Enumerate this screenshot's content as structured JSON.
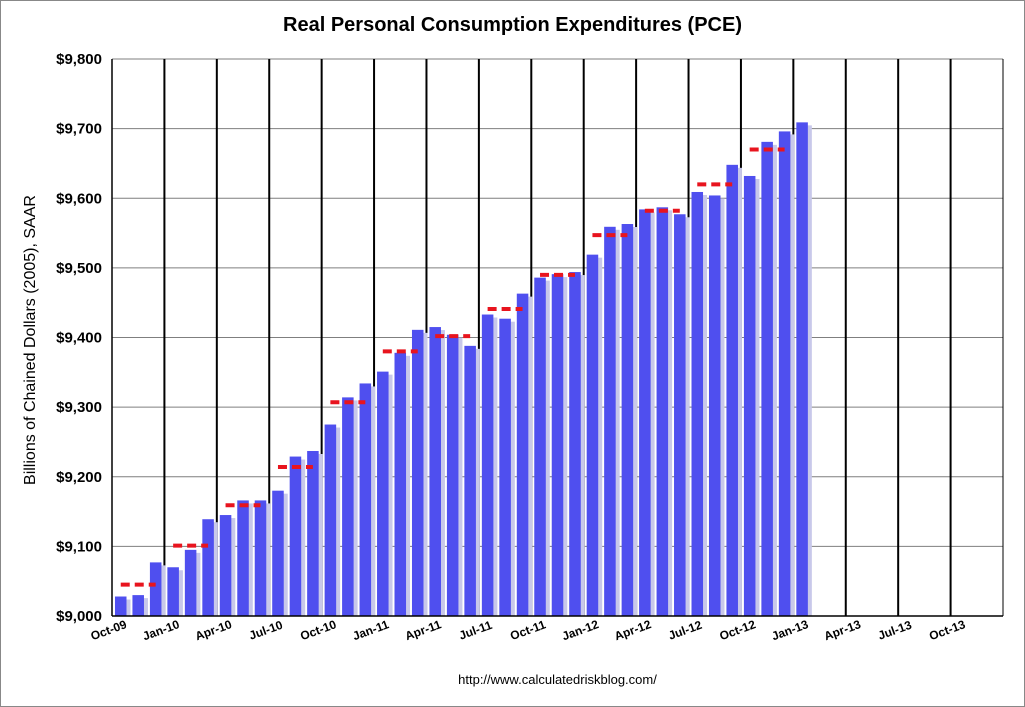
{
  "chart_data": {
    "type": "bar",
    "title": "Real Personal Consumption Expenditures (PCE)",
    "ylabel": "Billions of Chained Dollars (2005), SAAR",
    "xlabel": "",
    "ylim": [
      9000,
      9800
    ],
    "y_ticks": [
      "$9,000",
      "$9,100",
      "$9,200",
      "$9,300",
      "$9,400",
      "$9,500",
      "$9,600",
      "$9,700",
      "$9,800"
    ],
    "x_ticks": [
      "Oct-09",
      "Jan-10",
      "Apr-10",
      "Jul-10",
      "Oct-10",
      "Jan-11",
      "Apr-11",
      "Jul-11",
      "Oct-11",
      "Jan-12",
      "Apr-12",
      "Jul-12",
      "Oct-12",
      "Jan-13",
      "Apr-13",
      "Jul-13",
      "Oct-13"
    ],
    "grid": true,
    "bar_color": "#4f4fef",
    "average_color": "#e8141e",
    "series": [
      {
        "type": "bar",
        "categories": [
          "Oct-09",
          "Nov-09",
          "Dec-09",
          "Jan-10",
          "Feb-10",
          "Mar-10",
          "Apr-10",
          "May-10",
          "Jun-10",
          "Jul-10",
          "Aug-10",
          "Sep-10",
          "Oct-10",
          "Nov-10",
          "Dec-10",
          "Jan-11",
          "Feb-11",
          "Mar-11",
          "Apr-11",
          "May-11",
          "Jun-11",
          "Jul-11",
          "Aug-11",
          "Sep-11",
          "Oct-11",
          "Nov-11",
          "Dec-11",
          "Jan-12",
          "Feb-12",
          "Mar-12",
          "Apr-12",
          "May-12",
          "Jun-12",
          "Jul-12",
          "Aug-12",
          "Sep-12",
          "Oct-12",
          "Nov-12",
          "Dec-12"
        ],
        "values": [
          9028,
          9030,
          9077,
          9070,
          9095,
          9139,
          9145,
          9166,
          9166,
          9180,
          9229,
          9237,
          9275,
          9314,
          9334,
          9351,
          9378,
          9411,
          9415,
          9404,
          9388,
          9433,
          9427,
          9463,
          9486,
          9491,
          9494,
          9519,
          9559,
          9563,
          9584,
          9587,
          9577,
          9609,
          9604,
          9648,
          9632,
          9681,
          9696
        ]
      },
      {
        "type": "quarterly_average",
        "quarters": [
          "Q4-09",
          "Q1-10",
          "Q2-10",
          "Q3-10",
          "Q4-10",
          "Q1-11",
          "Q2-11",
          "Q3-11",
          "Q4-11",
          "Q1-12",
          "Q2-12",
          "Q3-12",
          "Q4-12"
        ],
        "values": [
          9045,
          9101,
          9159,
          9214,
          9307,
          9380,
          9402,
          9441,
          9490,
          9547,
          9582,
          9620,
          9670
        ]
      }
    ],
    "last_month_value": 9709
  },
  "source_text": "http://www.calculatedriskblog.com/"
}
